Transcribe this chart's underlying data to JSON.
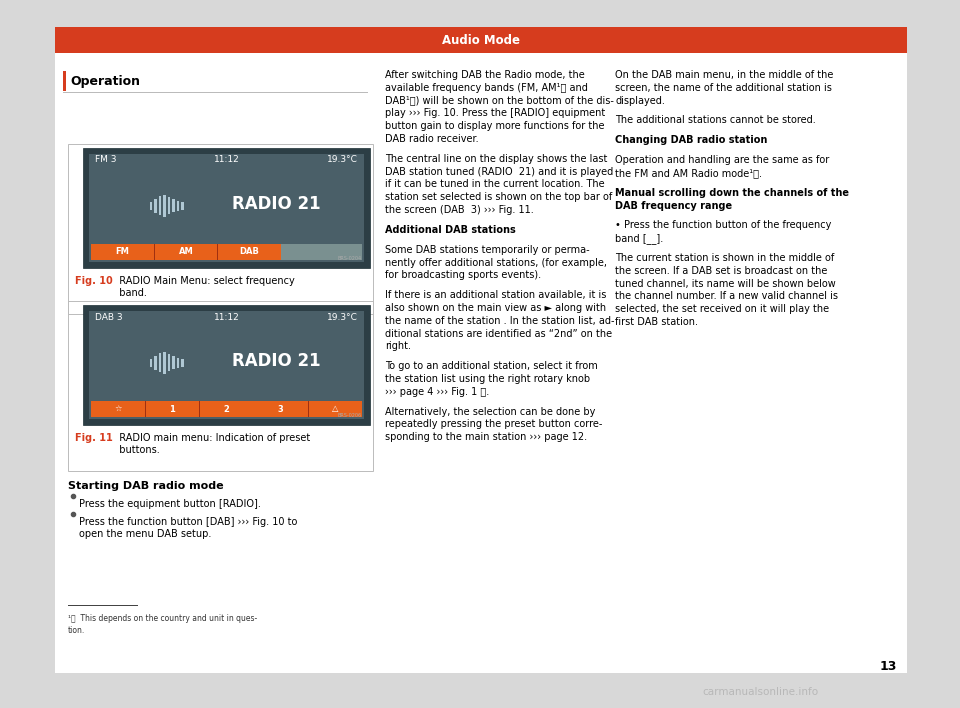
{
  "page_bg": "#d8d8d8",
  "content_bg": "#ffffff",
  "header_bg": "#d63c1e",
  "header_text": "Audio Mode",
  "header_text_color": "#ffffff",
  "left_bar_color": "#d63c1e",
  "section_title": "Operation",
  "screen_bg": "#4a5f68",
  "screen_outer_bg": "#364d55",
  "screen_text_color": "#ffffff",
  "screen_orange": "#e8611a",
  "screen_gray": "#7a9090",
  "screen1_s1": "FM 3",
  "screen1_s2": "11:12",
  "screen1_s3": "19.3°C",
  "screen1_title": "RADIO 21",
  "screen2_s1": "DAB 3",
  "screen2_s2": "11:12",
  "screen2_s3": "19.3°C",
  "screen2_title": "RADIO 21",
  "fig_label_color": "#d63c1e",
  "fig_label_alt_color": "#000000",
  "divider_color": "#bbbbbb",
  "col2_lines": [
    {
      "text": "After switching DAB the Radio mode, the",
      "bold": false
    },
    {
      "text": "available frequency bands (FM, AM¹⧳ and",
      "bold": false
    },
    {
      "text": "DAB¹⧳) will be shown on the bottom of the dis-",
      "bold": false
    },
    {
      "text": "play ››› Fig. 10. Press the [RADIO] equipment",
      "bold": false
    },
    {
      "text": "button gain to display more functions for the",
      "bold": false
    },
    {
      "text": "DAB radio receiver.",
      "bold": false
    },
    {
      "text": "",
      "bold": false
    },
    {
      "text": "The central line on the display shows the last",
      "bold": false
    },
    {
      "text": "DAB station tuned (RADIO  21) and it is played",
      "bold": false
    },
    {
      "text": "if it can be tuned in the current location. The",
      "bold": false
    },
    {
      "text": "station set selected is shown on the top bar of",
      "bold": false
    },
    {
      "text": "the screen (DAB  3) ››› Fig. 11.",
      "bold": false
    },
    {
      "text": "",
      "bold": false
    },
    {
      "text": "Additional DAB stations",
      "bold": true
    },
    {
      "text": "",
      "bold": false
    },
    {
      "text": "Some DAB stations temporarily or perma-",
      "bold": false
    },
    {
      "text": "nently offer additional stations, (for example,",
      "bold": false
    },
    {
      "text": "for broadcasting sports events).",
      "bold": false
    },
    {
      "text": "",
      "bold": false
    },
    {
      "text": "If there is an additional station available, it is",
      "bold": false
    },
    {
      "text": "also shown on the main view as ► along with",
      "bold": false
    },
    {
      "text": "the name of the station . In the station list, ad-",
      "bold": false
    },
    {
      "text": "ditional stations are identified as “2nd” on the",
      "bold": false
    },
    {
      "text": "right.",
      "bold": false
    },
    {
      "text": "",
      "bold": false
    },
    {
      "text": "To go to an additional station, select it from",
      "bold": false
    },
    {
      "text": "the station list using the right rotary knob",
      "bold": false
    },
    {
      "text": "››› page 4 ››› Fig. 1 ⓘ.",
      "bold": false
    },
    {
      "text": "",
      "bold": false
    },
    {
      "text": "Alternatively, the selection can be done by",
      "bold": false
    },
    {
      "text": "repeatedly pressing the preset button corre-",
      "bold": false
    },
    {
      "text": "sponding to the main station ››› page 12.",
      "bold": false
    }
  ],
  "col3_lines": [
    {
      "text": "On the DAB main menu, in the middle of the",
      "bold": false
    },
    {
      "text": "screen, the name of the additional station is",
      "bold": false
    },
    {
      "text": "displayed.",
      "bold": false
    },
    {
      "text": "",
      "bold": false
    },
    {
      "text": "The additional stations cannot be stored.",
      "bold": false
    },
    {
      "text": "",
      "bold": false
    },
    {
      "text": "Changing DAB radio station",
      "bold": true
    },
    {
      "text": "",
      "bold": false
    },
    {
      "text": "Operation and handling are the same as for",
      "bold": false
    },
    {
      "text": "the FM and AM Radio mode¹⧳.",
      "bold": false
    },
    {
      "text": "",
      "bold": false
    },
    {
      "text": "Manual scrolling down the channels of the",
      "bold": true
    },
    {
      "text": "DAB frequency range",
      "bold": true
    },
    {
      "text": "",
      "bold": false
    },
    {
      "text": "• Press the function button of the frequency",
      "bold": false
    },
    {
      "text": "band [__].",
      "bold": false
    },
    {
      "text": "",
      "bold": false
    },
    {
      "text": "The current station is shown in the middle of",
      "bold": false
    },
    {
      "text": "the screen. If a DAB set is broadcast on the",
      "bold": false
    },
    {
      "text": "tuned channel, its name will be shown below",
      "bold": false
    },
    {
      "text": "the channel number. If a new valid channel is",
      "bold": false
    },
    {
      "text": "selected, the set received on it will play the",
      "bold": false
    },
    {
      "text": "first DAB station.",
      "bold": false
    }
  ],
  "starting_dab_title": "Starting DAB radio mode",
  "bullet1": "Press the equipment button [RADIO].",
  "bullet2_a": "Press the function button [DAB] ››› Fig. 10 to",
  "bullet2_b": "open the menu DAB setup.",
  "footnote_line1": "¹⧳  This depends on the country and unit in ques-",
  "footnote_line2": "tion.",
  "page_number": "13",
  "watermark": "carmanualsonline.info"
}
